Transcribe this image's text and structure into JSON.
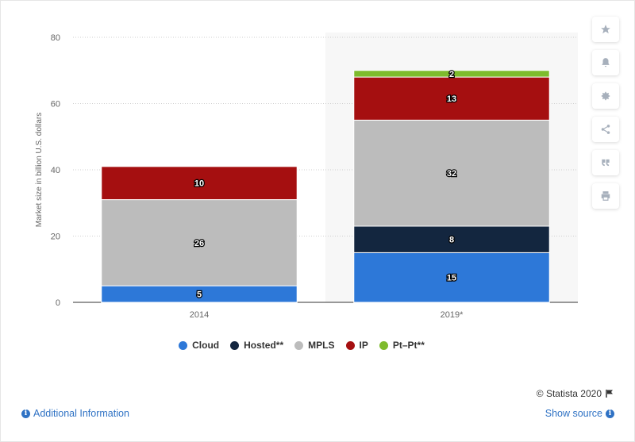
{
  "chart_data": {
    "type": "bar",
    "stacked": true,
    "categories": [
      "2014",
      "2019*"
    ],
    "series": [
      {
        "name": "Cloud",
        "color": "#2d78d8",
        "values": [
          5,
          15
        ]
      },
      {
        "name": "Hosted**",
        "color": "#13263f",
        "values": [
          0,
          8
        ]
      },
      {
        "name": "MPLS",
        "color": "#bcbcbc",
        "values": [
          26,
          32
        ]
      },
      {
        "name": "IP",
        "color": "#a50f10",
        "values": [
          10,
          13
        ]
      },
      {
        "name": "Pt–Pt**",
        "color": "#7ebb2d",
        "values": [
          0,
          2
        ]
      }
    ],
    "ylabel": "Market size in billion U.S. dollars",
    "ylim": [
      0,
      80
    ],
    "yticks": [
      0,
      20,
      40,
      60,
      80
    ],
    "grid": true,
    "legend_position": "bottom"
  },
  "toolbar": {
    "icons": [
      "star-icon",
      "bell-icon",
      "gear-icon",
      "share-icon",
      "quote-icon",
      "print-icon"
    ]
  },
  "footer": {
    "credits": "© Statista 2020",
    "additional_info": "Additional Information",
    "show_source": "Show source"
  }
}
